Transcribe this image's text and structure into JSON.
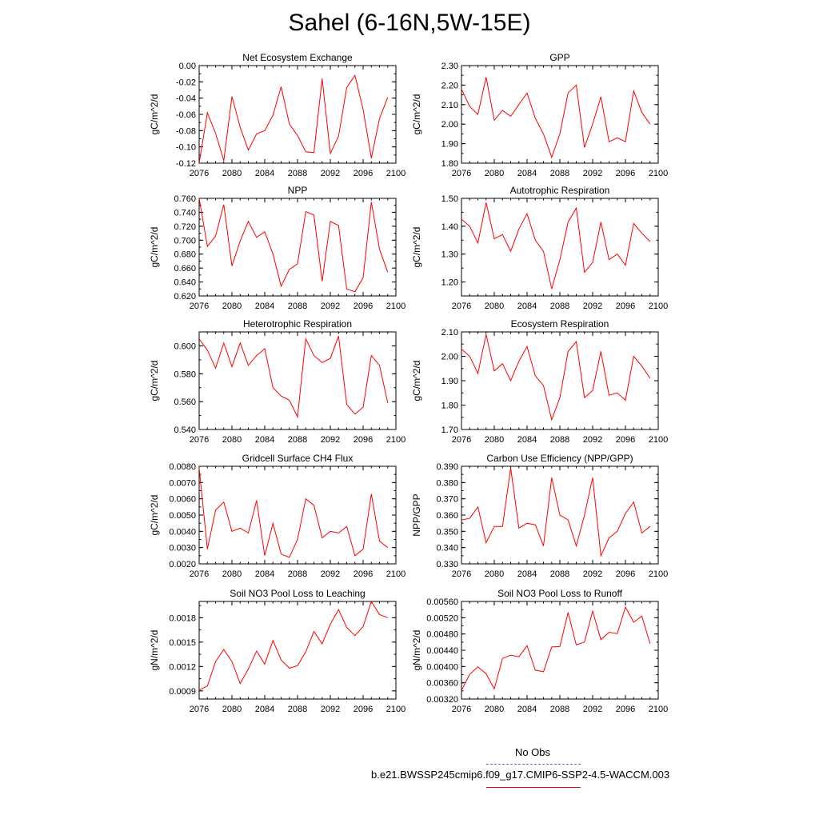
{
  "title": "Sahel (6-16N,5W-15E)",
  "chart_data": [
    {
      "type": "line",
      "title": "Net Ecosystem Exchange",
      "ylabel": "gC/m^2/d",
      "xlim": [
        2076,
        2100
      ],
      "xticks": [
        2076,
        2080,
        2084,
        2088,
        2092,
        2096,
        2100
      ],
      "ylim": [
        -0.12,
        0.0
      ],
      "yticks": [
        -0.12,
        -0.1,
        -0.08,
        -0.06,
        -0.04,
        -0.02,
        0.0
      ],
      "ytick_labels": [
        "-0.12",
        "-0.10",
        "-0.08",
        "-0.06",
        "-0.04",
        "-0.02",
        "0.00"
      ],
      "x": [
        2076,
        2077,
        2078,
        2079,
        2080,
        2081,
        2082,
        2083,
        2084,
        2085,
        2086,
        2087,
        2088,
        2089,
        2090,
        2091,
        2092,
        2093,
        2094,
        2095,
        2096,
        2097,
        2098,
        2099
      ],
      "series": [
        {
          "name": "b.e21.BWSSP245cmip6.f09_g17.CMIP6-SSP2-4.5-WACCM.003",
          "color": "#ff0000",
          "values": [
            -0.12,
            -0.058,
            -0.083,
            -0.117,
            -0.038,
            -0.076,
            -0.104,
            -0.084,
            -0.08,
            -0.061,
            -0.026,
            -0.072,
            -0.086,
            -0.106,
            -0.107,
            -0.016,
            -0.108,
            -0.087,
            -0.027,
            -0.012,
            -0.054,
            -0.114,
            -0.065,
            -0.039
          ]
        }
      ]
    },
    {
      "type": "line",
      "title": "GPP",
      "ylabel": "gC/m^2/d",
      "xlim": [
        2076,
        2100
      ],
      "xticks": [
        2076,
        2080,
        2084,
        2088,
        2092,
        2096,
        2100
      ],
      "ylim": [
        1.8,
        2.3
      ],
      "yticks": [
        1.8,
        1.9,
        2.0,
        2.1,
        2.2,
        2.3
      ],
      "ytick_labels": [
        "1.80",
        "1.90",
        "2.00",
        "2.10",
        "2.20",
        "2.30"
      ],
      "x": [
        2076,
        2077,
        2078,
        2079,
        2080,
        2081,
        2082,
        2083,
        2084,
        2085,
        2086,
        2087,
        2088,
        2089,
        2090,
        2091,
        2092,
        2093,
        2094,
        2095,
        2096,
        2097,
        2098,
        2099
      ],
      "series": [
        {
          "name": "b.e21.BWSSP245cmip6.f09_g17.CMIP6-SSP2-4.5-WACCM.003",
          "color": "#ff0000",
          "values": [
            2.18,
            2.09,
            2.05,
            2.24,
            2.02,
            2.07,
            2.04,
            2.1,
            2.16,
            2.03,
            1.95,
            1.83,
            1.95,
            2.16,
            2.2,
            1.88,
            2.0,
            2.14,
            1.91,
            1.93,
            1.91,
            2.17,
            2.06,
            2.0
          ]
        }
      ]
    },
    {
      "type": "line",
      "title": "NPP",
      "ylabel": "gC/m^2/d",
      "xlim": [
        2076,
        2100
      ],
      "xticks": [
        2076,
        2080,
        2084,
        2088,
        2092,
        2096,
        2100
      ],
      "ylim": [
        0.62,
        0.76
      ],
      "yticks": [
        0.62,
        0.64,
        0.66,
        0.68,
        0.7,
        0.72,
        0.74,
        0.76
      ],
      "ytick_labels": [
        "0.620",
        "0.640",
        "0.660",
        "0.680",
        "0.700",
        "0.720",
        "0.740",
        "0.760"
      ],
      "x": [
        2076,
        2077,
        2078,
        2079,
        2080,
        2081,
        2082,
        2083,
        2084,
        2085,
        2086,
        2087,
        2088,
        2089,
        2090,
        2091,
        2092,
        2093,
        2094,
        2095,
        2096,
        2097,
        2098,
        2099
      ],
      "series": [
        {
          "name": "b.e21.BWSSP245cmip6.f09_g17.CMIP6-SSP2-4.5-WACCM.003",
          "color": "#ff0000",
          "values": [
            0.76,
            0.691,
            0.706,
            0.751,
            0.663,
            0.699,
            0.727,
            0.704,
            0.712,
            0.68,
            0.634,
            0.658,
            0.666,
            0.741,
            0.736,
            0.641,
            0.727,
            0.721,
            0.63,
            0.626,
            0.646,
            0.755,
            0.687,
            0.654
          ]
        }
      ]
    },
    {
      "type": "line",
      "title": "Autotrophic Respiration",
      "ylabel": "gC/m^2/d",
      "xlim": [
        2076,
        2100
      ],
      "xticks": [
        2076,
        2080,
        2084,
        2088,
        2092,
        2096,
        2100
      ],
      "ylim": [
        1.15,
        1.5
      ],
      "yticks": [
        1.2,
        1.3,
        1.4,
        1.5
      ],
      "ytick_labels": [
        "1.20",
        "1.30",
        "1.40",
        "1.50"
      ],
      "x": [
        2076,
        2077,
        2078,
        2079,
        2080,
        2081,
        2082,
        2083,
        2084,
        2085,
        2086,
        2087,
        2088,
        2089,
        2090,
        2091,
        2092,
        2093,
        2094,
        2095,
        2096,
        2097,
        2098,
        2099
      ],
      "series": [
        {
          "name": "b.e21.BWSSP245cmip6.f09_g17.CMIP6-SSP2-4.5-WACCM.003",
          "color": "#ff0000",
          "values": [
            1.425,
            1.4,
            1.34,
            1.485,
            1.355,
            1.37,
            1.31,
            1.39,
            1.445,
            1.35,
            1.31,
            1.175,
            1.28,
            1.415,
            1.465,
            1.235,
            1.27,
            1.415,
            1.28,
            1.3,
            1.26,
            1.41,
            1.375,
            1.345
          ]
        }
      ]
    },
    {
      "type": "line",
      "title": "Heterotrophic Respiration",
      "ylabel": "gC/m^2/d",
      "xlim": [
        2076,
        2100
      ],
      "xticks": [
        2076,
        2080,
        2084,
        2088,
        2092,
        2096,
        2100
      ],
      "ylim": [
        0.54,
        0.61
      ],
      "yticks": [
        0.54,
        0.56,
        0.58,
        0.6
      ],
      "ytick_labels": [
        "0.540",
        "0.560",
        "0.580",
        "0.600"
      ],
      "x": [
        2076,
        2077,
        2078,
        2079,
        2080,
        2081,
        2082,
        2083,
        2084,
        2085,
        2086,
        2087,
        2088,
        2089,
        2090,
        2091,
        2092,
        2093,
        2094,
        2095,
        2096,
        2097,
        2098,
        2099
      ],
      "series": [
        {
          "name": "b.e21.BWSSP245cmip6.f09_g17.CMIP6-SSP2-4.5-WACCM.003",
          "color": "#ff0000",
          "values": [
            0.605,
            0.597,
            0.584,
            0.602,
            0.585,
            0.602,
            0.586,
            0.593,
            0.598,
            0.57,
            0.564,
            0.561,
            0.549,
            0.605,
            0.593,
            0.588,
            0.591,
            0.607,
            0.558,
            0.551,
            0.556,
            0.593,
            0.586,
            0.559
          ]
        }
      ]
    },
    {
      "type": "line",
      "title": "Ecosystem Respiration",
      "ylabel": "gC/m^2/d",
      "xlim": [
        2076,
        2100
      ],
      "xticks": [
        2076,
        2080,
        2084,
        2088,
        2092,
        2096,
        2100
      ],
      "ylim": [
        1.7,
        2.1
      ],
      "yticks": [
        1.7,
        1.8,
        1.9,
        2.0,
        2.1
      ],
      "ytick_labels": [
        "1.70",
        "1.80",
        "1.90",
        "2.00",
        "2.10"
      ],
      "x": [
        2076,
        2077,
        2078,
        2079,
        2080,
        2081,
        2082,
        2083,
        2084,
        2085,
        2086,
        2087,
        2088,
        2089,
        2090,
        2091,
        2092,
        2093,
        2094,
        2095,
        2096,
        2097,
        2098,
        2099
      ],
      "series": [
        {
          "name": "b.e21.BWSSP245cmip6.f09_g17.CMIP6-SSP2-4.5-WACCM.003",
          "color": "#ff0000",
          "values": [
            2.03,
            2.0,
            1.93,
            2.09,
            1.94,
            1.97,
            1.9,
            1.98,
            2.04,
            1.92,
            1.88,
            1.74,
            1.83,
            2.02,
            2.06,
            1.83,
            1.86,
            2.02,
            1.84,
            1.85,
            1.82,
            2.0,
            1.96,
            1.91
          ]
        }
      ]
    },
    {
      "type": "line",
      "title": "Gridcell Surface CH4 Flux",
      "ylabel": "gC/m^2/d",
      "xlim": [
        2076,
        2100
      ],
      "xticks": [
        2076,
        2080,
        2084,
        2088,
        2092,
        2096,
        2100
      ],
      "ylim": [
        0.002,
        0.008
      ],
      "yticks": [
        0.002,
        0.003,
        0.004,
        0.005,
        0.006,
        0.007,
        0.008
      ],
      "ytick_labels": [
        "0.0020",
        "0.0030",
        "0.0040",
        "0.0050",
        "0.0060",
        "0.0070",
        "0.0080"
      ],
      "x": [
        2076,
        2077,
        2078,
        2079,
        2080,
        2081,
        2082,
        2083,
        2084,
        2085,
        2086,
        2087,
        2088,
        2089,
        2090,
        2091,
        2092,
        2093,
        2094,
        2095,
        2096,
        2097,
        2098,
        2099
      ],
      "series": [
        {
          "name": "b.e21.BWSSP245cmip6.f09_g17.CMIP6-SSP2-4.5-WACCM.003",
          "color": "#ff0000",
          "values": [
            0.0079,
            0.0029,
            0.0053,
            0.0058,
            0.004,
            0.0042,
            0.0039,
            0.0059,
            0.0025,
            0.0045,
            0.0026,
            0.0024,
            0.0035,
            0.006,
            0.0056,
            0.0036,
            0.004,
            0.0039,
            0.0043,
            0.0025,
            0.0029,
            0.0063,
            0.0034,
            0.003
          ]
        }
      ]
    },
    {
      "type": "line",
      "title": "Carbon Use Efficiency (NPP/GPP)",
      "ylabel": "NPP/GPP",
      "xlim": [
        2076,
        2100
      ],
      "xticks": [
        2076,
        2080,
        2084,
        2088,
        2092,
        2096,
        2100
      ],
      "ylim": [
        0.33,
        0.39
      ],
      "yticks": [
        0.33,
        0.34,
        0.35,
        0.36,
        0.37,
        0.38,
        0.39
      ],
      "ytick_labels": [
        "0.330",
        "0.340",
        "0.350",
        "0.360",
        "0.370",
        "0.380",
        "0.390"
      ],
      "x": [
        2076,
        2077,
        2078,
        2079,
        2080,
        2081,
        2082,
        2083,
        2084,
        2085,
        2086,
        2087,
        2088,
        2089,
        2090,
        2091,
        2092,
        2093,
        2094,
        2095,
        2096,
        2097,
        2098,
        2099
      ],
      "series": [
        {
          "name": "b.e21.BWSSP245cmip6.f09_g17.CMIP6-SSP2-4.5-WACCM.003",
          "color": "#ff0000",
          "values": [
            0.357,
            0.358,
            0.365,
            0.343,
            0.353,
            0.353,
            0.389,
            0.352,
            0.355,
            0.354,
            0.341,
            0.383,
            0.36,
            0.357,
            0.341,
            0.36,
            0.383,
            0.335,
            0.346,
            0.35,
            0.361,
            0.368,
            0.349,
            0.353
          ]
        }
      ]
    },
    {
      "type": "line",
      "title": "Soil NO3 Pool Loss to Leaching",
      "ylabel": "gN/m^2/d",
      "xlim": [
        2076,
        2100
      ],
      "xticks": [
        2076,
        2080,
        2084,
        2088,
        2092,
        2096,
        2100
      ],
      "ylim": [
        0.0008,
        0.002
      ],
      "yticks": [
        0.0009,
        0.0012,
        0.0015,
        0.0018
      ],
      "ytick_labels": [
        "0.0009",
        "0.0012",
        "0.0015",
        "0.0018"
      ],
      "x": [
        2076,
        2077,
        2078,
        2079,
        2080,
        2081,
        2082,
        2083,
        2084,
        2085,
        2086,
        2087,
        2088,
        2089,
        2090,
        2091,
        2092,
        2093,
        2094,
        2095,
        2096,
        2097,
        2098,
        2099
      ],
      "series": [
        {
          "name": "b.e21.BWSSP245cmip6.f09_g17.CMIP6-SSP2-4.5-WACCM.003",
          "color": "#ff0000",
          "values": [
            0.00091,
            0.00096,
            0.00126,
            0.00141,
            0.00126,
            0.00099,
            0.00117,
            0.00139,
            0.00123,
            0.00152,
            0.00128,
            0.00118,
            0.00121,
            0.00138,
            0.00163,
            0.00148,
            0.00172,
            0.0019,
            0.00168,
            0.00158,
            0.00169,
            0.002,
            0.00184,
            0.0018
          ]
        }
      ]
    },
    {
      "type": "line",
      "title": "Soil NO3 Pool Loss to Runoff",
      "ylabel": "gN/m^2/d",
      "xlim": [
        2076,
        2100
      ],
      "xticks": [
        2076,
        2080,
        2084,
        2088,
        2092,
        2096,
        2100
      ],
      "ylim": [
        0.0032,
        0.0056
      ],
      "yticks": [
        0.0032,
        0.0036,
        0.004,
        0.0044,
        0.0048,
        0.0052,
        0.0056
      ],
      "ytick_labels": [
        "0.00320",
        "0.00360",
        "0.00400",
        "0.00440",
        "0.00480",
        "0.00520",
        "0.00560"
      ],
      "x": [
        2076,
        2077,
        2078,
        2079,
        2080,
        2081,
        2082,
        2083,
        2084,
        2085,
        2086,
        2087,
        2088,
        2089,
        2090,
        2091,
        2092,
        2093,
        2094,
        2095,
        2096,
        2097,
        2098,
        2099
      ],
      "series": [
        {
          "name": "b.e21.BWSSP245cmip6.f09_g17.CMIP6-SSP2-4.5-WACCM.003",
          "color": "#ff0000",
          "values": [
            0.00341,
            0.00381,
            0.00399,
            0.00382,
            0.00345,
            0.0042,
            0.00428,
            0.00424,
            0.00451,
            0.00391,
            0.00387,
            0.00448,
            0.00449,
            0.00533,
            0.00453,
            0.0046,
            0.00536,
            0.00466,
            0.00484,
            0.00481,
            0.00546,
            0.00509,
            0.00524,
            0.00456
          ]
        }
      ]
    }
  ],
  "legend": {
    "obs_label": "No Obs",
    "obs_color": "#6a6ad6",
    "case_label": "b.e21.BWSSP245cmip6.f09_g17.CMIP6-SSP2-4.5-WACCM.003",
    "case_color": "#ff0000"
  }
}
